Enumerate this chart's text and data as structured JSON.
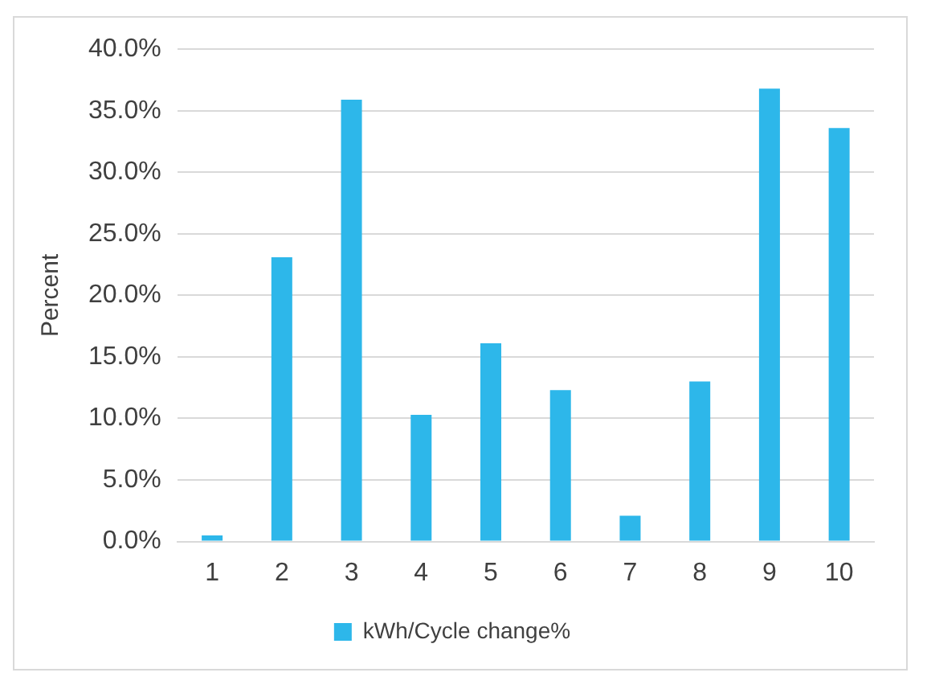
{
  "chart_data": {
    "type": "bar",
    "ylabel": "Percent",
    "categories": [
      "1",
      "2",
      "3",
      "4",
      "5",
      "6",
      "7",
      "8",
      "9",
      "10"
    ],
    "series": [
      {
        "name": "kWh/Cycle change%",
        "color": "#2db7ea",
        "values": [
          0.5,
          23.1,
          35.9,
          10.3,
          16.1,
          12.3,
          2.1,
          13.0,
          36.8,
          33.6
        ]
      }
    ],
    "ylim": [
      0,
      40
    ],
    "yticks": [
      {
        "value": 0,
        "label": "0.0%"
      },
      {
        "value": 5,
        "label": "5.0%"
      },
      {
        "value": 10,
        "label": "10.0%"
      },
      {
        "value": 15,
        "label": "15.0%"
      },
      {
        "value": 20,
        "label": "20.0%"
      },
      {
        "value": 25,
        "label": "25.0%"
      },
      {
        "value": 30,
        "label": "30.0%"
      },
      {
        "value": 35,
        "label": "35.0%"
      },
      {
        "value": 40,
        "label": "40.0%"
      }
    ],
    "grid": "y",
    "legend": "bottom"
  }
}
